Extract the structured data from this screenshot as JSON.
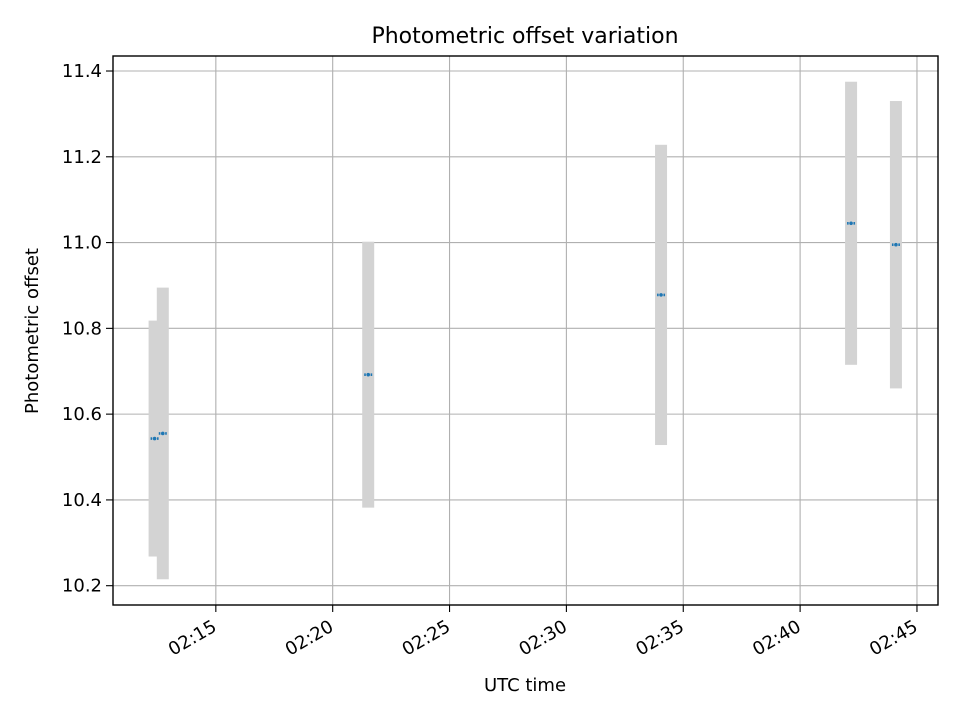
{
  "chart_data": {
    "type": "scatter",
    "title": "Photometric offset variation",
    "xlabel": "UTC time",
    "ylabel": "Photometric offset",
    "x_unit": "minutes after 02:00 UTC",
    "xlim": [
      10.6,
      45.9
    ],
    "ylim": [
      10.155,
      11.435
    ],
    "grid": true,
    "legend": "none",
    "xticks": [
      {
        "value": 15,
        "label": "02:15"
      },
      {
        "value": 20,
        "label": "02:20"
      },
      {
        "value": 25,
        "label": "02:25"
      },
      {
        "value": 30,
        "label": "02:30"
      },
      {
        "value": 35,
        "label": "02:35"
      },
      {
        "value": 40,
        "label": "02:40"
      },
      {
        "value": 45,
        "label": "02:45"
      }
    ],
    "yticks": [
      {
        "value": 10.2,
        "label": "10.2"
      },
      {
        "value": 10.4,
        "label": "10.4"
      },
      {
        "value": 10.6,
        "label": "10.6"
      },
      {
        "value": 10.8,
        "label": "10.8"
      },
      {
        "value": 11.0,
        "label": "11.0"
      },
      {
        "value": 11.2,
        "label": "11.2"
      },
      {
        "value": 11.4,
        "label": "11.4"
      }
    ],
    "series": [
      {
        "name": "photometric offset",
        "color": "#1f77b4",
        "errorbar_color": "#d3d3d3",
        "points": [
          {
            "x": 12.38,
            "y": 10.543,
            "err": 0.275
          },
          {
            "x": 12.73,
            "y": 10.555,
            "err": 0.34
          },
          {
            "x": 21.52,
            "y": 10.692,
            "err": 0.31
          },
          {
            "x": 34.05,
            "y": 10.878,
            "err": 0.35
          },
          {
            "x": 42.18,
            "y": 11.045,
            "err": 0.33
          },
          {
            "x": 44.1,
            "y": 10.995,
            "err": 0.335
          }
        ]
      }
    ]
  }
}
